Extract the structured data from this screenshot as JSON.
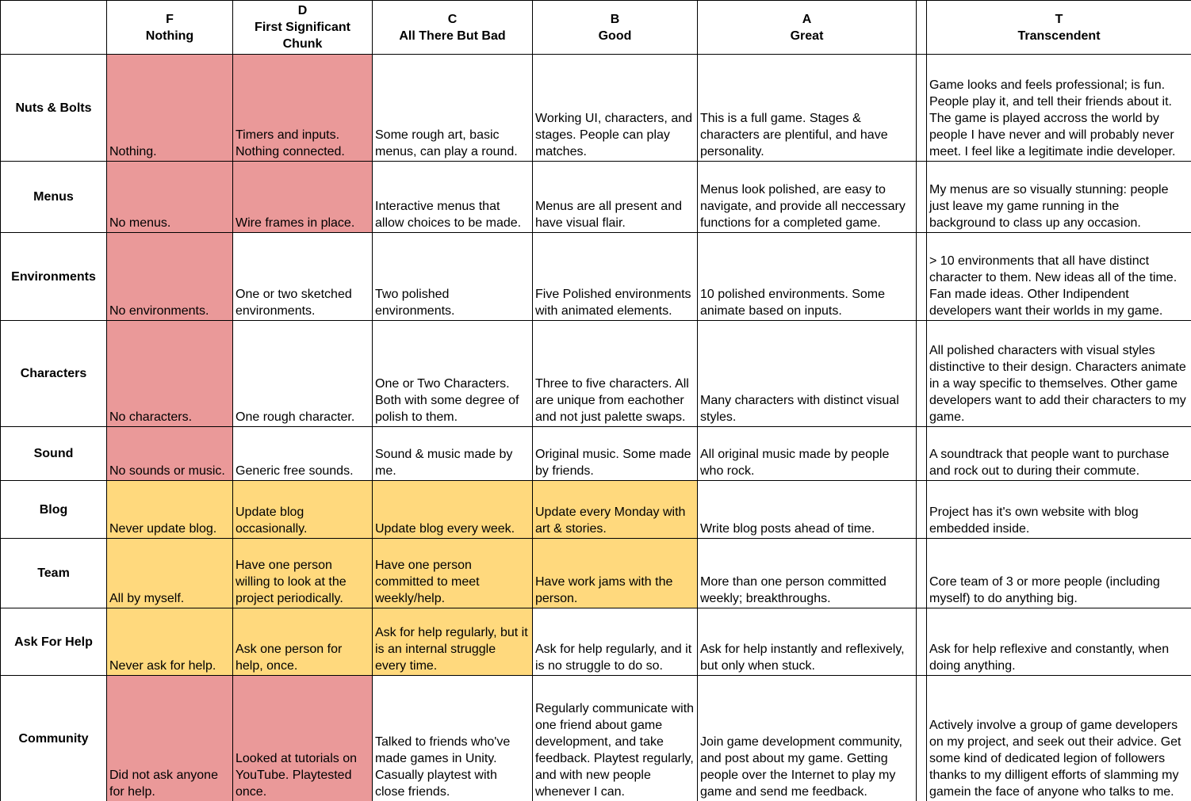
{
  "colors": {
    "red": "#ea9999",
    "yellow": "#ffd97d",
    "white": "#ffffff",
    "border": "#000000"
  },
  "table": {
    "header": [
      {
        "grade": "",
        "label": ""
      },
      {
        "grade": "F",
        "label": "Nothing"
      },
      {
        "grade": "D",
        "label": "First Significant Chunk"
      },
      {
        "grade": "C",
        "label": "All There But Bad"
      },
      {
        "grade": "B",
        "label": "Good"
      },
      {
        "grade": "A",
        "label": "Great"
      },
      {
        "grade": "",
        "label": ""
      },
      {
        "grade": "T",
        "label": "Transcendent"
      }
    ],
    "rows": [
      {
        "label": "Nuts & Bolts",
        "cells": [
          {
            "text": "Nothing.",
            "bg": "red"
          },
          {
            "text": "Timers and inputs. Nothing connected.",
            "bg": "red"
          },
          {
            "text": "Some rough art, basic menus, can play a round.",
            "bg": "white"
          },
          {
            "text": "Working UI, characters, and stages. People can play matches.",
            "bg": "white"
          },
          {
            "text": "This is a full game. Stages & characters are plentiful, and have personality.",
            "bg": "white"
          },
          {
            "text": "",
            "bg": "white"
          },
          {
            "text": "Game looks and feels professional; is fun. People play it, and tell their friends about it. The game is played accross the world by people I have never and will probably never meet. I feel like a legitimate indie developer.",
            "bg": "white"
          }
        ]
      },
      {
        "label": "Menus",
        "cells": [
          {
            "text": "No menus.",
            "bg": "red"
          },
          {
            "text": "Wire frames in place.",
            "bg": "red"
          },
          {
            "text": "Interactive menus that allow choices to be made.",
            "bg": "white"
          },
          {
            "text": "Menus are all present and have visual flair.",
            "bg": "white"
          },
          {
            "text": "Menus look polished, are easy to navigate, and provide all neccessary functions for a completed game.",
            "bg": "white"
          },
          {
            "text": "",
            "bg": "white"
          },
          {
            "text": "My menus are so visually stunning: people just leave my game running in the background to class up any occasion.",
            "bg": "white"
          }
        ]
      },
      {
        "label": "Environments",
        "cells": [
          {
            "text": "No environments.",
            "bg": "red"
          },
          {
            "text": "One or two sketched environments.",
            "bg": "white"
          },
          {
            "text": "Two polished environments.",
            "bg": "white"
          },
          {
            "text": "Five Polished environments with animated elements.",
            "bg": "white"
          },
          {
            "text": "10 polished environments. Some animate based on inputs.",
            "bg": "white"
          },
          {
            "text": "",
            "bg": "white"
          },
          {
            "text": "> 10 environments that all have distinct character to them. New ideas all of the time. Fan made ideas. Other Indipendent developers want their worlds in my game.",
            "bg": "white"
          }
        ]
      },
      {
        "label": "Characters",
        "cells": [
          {
            "text": "No characters.",
            "bg": "red"
          },
          {
            "text": "One rough character.",
            "bg": "white"
          },
          {
            "text": "One or Two Characters. Both with some degree of polish to them.",
            "bg": "white"
          },
          {
            "text": "Three to five characters. All are unique from eachother and not just palette swaps.",
            "bg": "white"
          },
          {
            "text": "Many characters with distinct visual styles.",
            "bg": "white"
          },
          {
            "text": "",
            "bg": "white"
          },
          {
            "text": "All polished characters with visual styles distinctive to their design. Characters animate in a way specific to themselves. Other game developers want to add their characters to my game.",
            "bg": "white"
          }
        ]
      },
      {
        "label": "Sound",
        "cells": [
          {
            "text": "No sounds or music.",
            "bg": "red"
          },
          {
            "text": "Generic free sounds.",
            "bg": "white"
          },
          {
            "text": "Sound & music made by me.",
            "bg": "white"
          },
          {
            "text": "Original music. Some made by friends.",
            "bg": "white"
          },
          {
            "text": "All original music made by people who rock.",
            "bg": "white"
          },
          {
            "text": "",
            "bg": "white"
          },
          {
            "text": "A soundtrack that people want to purchase and rock out to during their commute.",
            "bg": "white"
          }
        ]
      },
      {
        "label": "Blog",
        "cells": [
          {
            "text": "Never update blog.",
            "bg": "yellow"
          },
          {
            "text": "Update blog occasionally.",
            "bg": "yellow"
          },
          {
            "text": "Update blog every week.",
            "bg": "yellow"
          },
          {
            "text": "Update every Monday with art & stories.",
            "bg": "yellow"
          },
          {
            "text": "Write blog posts ahead of time.",
            "bg": "white"
          },
          {
            "text": "",
            "bg": "white"
          },
          {
            "text": "Project has it's own website with blog embedded inside.",
            "bg": "white"
          }
        ]
      },
      {
        "label": "Team",
        "cells": [
          {
            "text": "All by myself.",
            "bg": "yellow"
          },
          {
            "text": "Have one person willing to look at the project periodically.",
            "bg": "yellow"
          },
          {
            "text": "Have one person committed to meet weekly/help.",
            "bg": "yellow"
          },
          {
            "text": "Have work jams with the person.",
            "bg": "yellow"
          },
          {
            "text": "More than one person committed weekly; breakthroughs.",
            "bg": "white"
          },
          {
            "text": "",
            "bg": "white"
          },
          {
            "text": "Core team of 3 or more people (including myself) to do anything big.",
            "bg": "white"
          }
        ]
      },
      {
        "label": "Ask For Help",
        "cells": [
          {
            "text": "Never ask for help.",
            "bg": "yellow"
          },
          {
            "text": "Ask one person for help, once.",
            "bg": "yellow"
          },
          {
            "text": "Ask for help regularly, but it is an internal struggle every time.",
            "bg": "yellow"
          },
          {
            "text": "Ask for help regularly, and it is no struggle to do so.",
            "bg": "white"
          },
          {
            "text": "Ask for help instantly and reflexively, but only when stuck.",
            "bg": "white"
          },
          {
            "text": "",
            "bg": "white"
          },
          {
            "text": "Ask for help reflexive and constantly, when doing anything.",
            "bg": "white"
          }
        ]
      },
      {
        "label": "Community",
        "cells": [
          {
            "text": "Did not ask anyone for help.",
            "bg": "red"
          },
          {
            "text": "Looked at tutorials on YouTube. Playtested once.",
            "bg": "red"
          },
          {
            "text": "Talked to friends who've made games in Unity. Casually playtest with close friends.",
            "bg": "white"
          },
          {
            "text": "Regularly communicate with one friend about game development, and take feedback. Playtest regularly, and with new people whenever I can.",
            "bg": "white"
          },
          {
            "text": "Join game development community, and post about my game. Getting people over the Internet to play my game and send me feedback.",
            "bg": "white"
          },
          {
            "text": "",
            "bg": "white"
          },
          {
            "text": "Actively involve a group of game developers on my project, and seek out their advice. Get some kind of dedicated legion of followers thanks to my dilligent efforts of slamming my gamein the face of anyone who talks to me.",
            "bg": "white"
          }
        ]
      }
    ]
  }
}
